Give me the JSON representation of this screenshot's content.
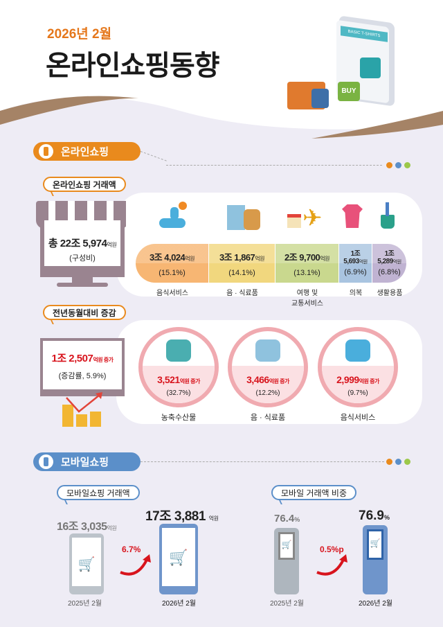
{
  "header": {
    "date": "2026년 2월",
    "title": "온라인쇼핑동향",
    "illustration_text": {
      "shirt_banner": "BASIC T-SHIRTS",
      "buy_button": "BUY"
    }
  },
  "online": {
    "section_title": "온라인쇼핑",
    "transaction": {
      "callout": "온라인쇼핑 거래액",
      "total_prefix": "총 22조 5,974",
      "unit": "억원",
      "total_sub": "(구성비)",
      "items": [
        {
          "value": "3조 4,024",
          "unit": "억원",
          "share": "(15.1%)",
          "label": "음식서비스",
          "color": "#f7b673",
          "icon": "delivery-scooter-icon"
        },
        {
          "value": "3조 1,867",
          "unit": "억원",
          "share": "(14.1%)",
          "label": "음 · 식료품",
          "color": "#f1d77e",
          "icon": "milk-bread-icon"
        },
        {
          "value": "2조 9,700",
          "unit": "억원",
          "share": "(13.1%)",
          "label": "여행 및",
          "label2": "교통서비스",
          "color": "#c9d88e",
          "icon": "airplane-calendar-icon"
        },
        {
          "value": "1조 5,693",
          "unit": "억원",
          "share": "(6.9%)",
          "label": "의복",
          "color": "#a9c4e0",
          "icon": "shirt-icon"
        },
        {
          "value": "1조 5,289",
          "unit": "억원",
          "share": "(6.8%)",
          "label": "생활용품",
          "color": "#c0b3d2",
          "icon": "toothbrush-cup-icon"
        }
      ]
    },
    "yoy": {
      "callout": "전년동월대비 증감",
      "total": "1조 2,507",
      "unit": "억원 증가",
      "rate": "(증감률, 5.9%)",
      "items": [
        {
          "value": "3,521",
          "unit": "억원 증가",
          "rate": "(32.7%)",
          "label": "농축수산물",
          "icon": "fish-wheat-icon"
        },
        {
          "value": "3,466",
          "unit": "억원 증가",
          "rate": "(12.2%)",
          "label": "음 · 식료품",
          "icon": "milk-bread-icon"
        },
        {
          "value": "2,999",
          "unit": "억원 증가",
          "rate": "(9.7%)",
          "label": "음식서비스",
          "icon": "delivery-scooter-icon"
        }
      ]
    }
  },
  "mobile": {
    "section_title": "모바일쇼핑",
    "transaction": {
      "callout": "모바일쇼핑 거래액",
      "prev_value": "16조 3,035",
      "prev_unit": "억원",
      "prev_label": "2025년 2월",
      "growth": "6.7%",
      "cur_value": "17조 3,881",
      "cur_unit": "억원",
      "cur_label": "2026년 2월"
    },
    "share": {
      "callout": "모바일 거래액 비중",
      "prev_value": "76.4",
      "prev_unit": "%",
      "prev_label": "2025년 2월",
      "growth": "0.5%p",
      "cur_value": "76.9",
      "cur_unit": "%",
      "cur_label": "2026년 2월"
    }
  },
  "colors": {
    "orange": "#e98a1d",
    "blue": "#5b8fc9",
    "red": "#d8141d",
    "background": "#eeecf5"
  }
}
